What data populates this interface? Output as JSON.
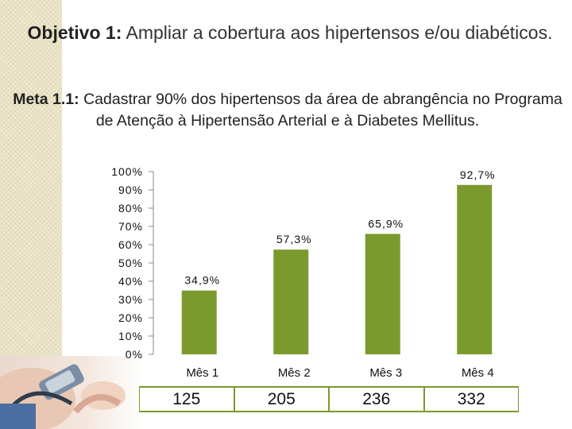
{
  "title": {
    "label": "Objetivo 1:",
    "text": " Ampliar a cobertura aos hipertensos e/ou diabéticos."
  },
  "meta": {
    "label": "Meta 1.1:",
    "text": " Cadastrar 90% dos hipertensos da área de abrangência no Programa de Atenção à Hipertensão Arterial e à Diabetes Mellitus."
  },
  "chart_data": {
    "type": "bar",
    "categories": [
      "Mês 1",
      "Mês 2",
      "Mês 3",
      "Mês 4"
    ],
    "values": [
      34.9,
      57.3,
      65.9,
      92.7
    ],
    "data_labels": [
      "34,9%",
      "57,3%",
      "65,9%",
      "92,7%"
    ],
    "ytick_labels": [
      "0%",
      "10%",
      "20%",
      "30%",
      "40%",
      "50%",
      "60%",
      "70%",
      "80%",
      "90%",
      "100%"
    ],
    "ylim": [
      0,
      100
    ],
    "bar_color": "#7a9a2e",
    "grid": false
  },
  "counts_table": [
    "125",
    "205",
    "236",
    "332"
  ],
  "colors": {
    "accent": "#7a9a2e",
    "strip": "#efe9cf"
  },
  "icons": {
    "photo": "blood-pressure-photo-icon"
  }
}
